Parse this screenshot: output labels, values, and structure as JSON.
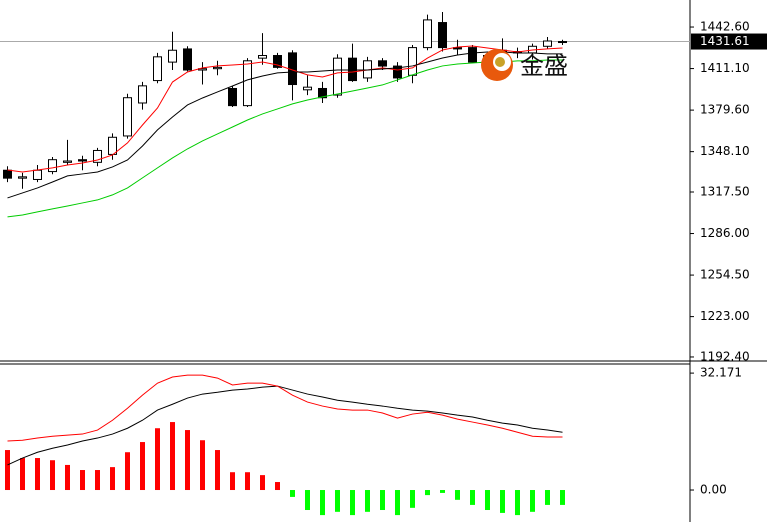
{
  "chart_data": [
    {
      "type": "candlestick",
      "categories": [
        null,
        null,
        null,
        null,
        null,
        null,
        null,
        null,
        null,
        null,
        null,
        null,
        null,
        null,
        null,
        null,
        null,
        null,
        null,
        null,
        null,
        null,
        null,
        null,
        null,
        null,
        null,
        null,
        null,
        null,
        null,
        null,
        null,
        null,
        null,
        null,
        null,
        null
      ],
      "open": [
        1334,
        1328,
        1327,
        1333,
        1340,
        1342,
        1340,
        1346,
        1360,
        1385,
        1402,
        1416,
        1426,
        1410,
        1411,
        1396,
        1383,
        1419,
        1421,
        1423,
        1395,
        1396,
        1391,
        1419,
        1404,
        1417,
        1413,
        1406,
        1427,
        1446,
        1427,
        1427,
        1420,
        1425,
        1424,
        1423,
        1428,
        1431
      ],
      "high": [
        1337,
        1332,
        1338,
        1344,
        1357,
        1345,
        1351,
        1362,
        1392,
        1401,
        1423,
        1439,
        1428,
        1416,
        1417,
        1398,
        1419,
        1438,
        1423,
        1425,
        1406,
        1401,
        1422,
        1430,
        1420,
        1419,
        1416,
        1429,
        1452,
        1454,
        1433,
        1429,
        1424,
        1434,
        1427,
        1430,
        1435,
        1433
      ],
      "low": [
        1325,
        1320,
        1325,
        1331,
        1338,
        1334,
        1337,
        1342,
        1358,
        1380,
        1400,
        1410,
        1409,
        1399,
        1406,
        1382,
        1382,
        1414,
        1411,
        1387,
        1391,
        1385,
        1389,
        1401,
        1401,
        1410,
        1401,
        1400,
        1425,
        1424,
        1421,
        1416,
        1414,
        1419,
        1419,
        1418,
        1426,
        1429
      ],
      "close": [
        1328,
        1329,
        1334,
        1342,
        1341,
        1341,
        1349,
        1359,
        1389,
        1398,
        1420,
        1425,
        1410,
        1411,
        1412,
        1383,
        1417,
        1421,
        1412,
        1399,
        1397,
        1389,
        1419,
        1402,
        1417,
        1413,
        1404,
        1427,
        1448,
        1427,
        1426,
        1416,
        1421,
        1424,
        1423,
        1428,
        1432,
        1431.61
      ],
      "up_color": "#ffffff",
      "down_color": "#000000",
      "series": [
        {
          "color": "#ff0000",
          "values": [
            1334.2,
            1332.7,
            1334.2,
            1335.8,
            1338.0,
            1339.5,
            1341.8,
            1345.6,
            1354.7,
            1368.3,
            1381.2,
            1400.9,
            1408.5,
            1411.6,
            1413.1,
            1413.8,
            1414.6,
            1416.1,
            1413.8,
            1410.0,
            1406.3,
            1404.7,
            1407.8,
            1408.5,
            1410.0,
            1411.6,
            1410.0,
            1411.6,
            1419.1,
            1425.2,
            1427.5,
            1428.2,
            1426.7,
            1425.2,
            1423.7,
            1425.2,
            1426.0,
            1426.7
          ]
        },
        {
          "color": "#000000",
          "values": [
            1313.0,
            1316.8,
            1320.6,
            1325.1,
            1329.7,
            1331.2,
            1332.7,
            1336.5,
            1341.8,
            1352.4,
            1364.6,
            1374.4,
            1383.5,
            1388.8,
            1393.4,
            1397.9,
            1402.5,
            1405.5,
            1407.8,
            1408.5,
            1408.5,
            1409.3,
            1410.0,
            1410.0,
            1410.0,
            1410.8,
            1411.6,
            1413.1,
            1416.1,
            1419.1,
            1421.4,
            1422.9,
            1423.7,
            1423.7,
            1422.9,
            1422.9,
            1422.2,
            1422.2
          ]
        },
        {
          "color": "#00cc00",
          "values": [
            1298.6,
            1300.1,
            1302.4,
            1304.7,
            1306.9,
            1309.2,
            1311.5,
            1315.3,
            1320.6,
            1328.2,
            1335.8,
            1343.3,
            1350.2,
            1356.2,
            1361.5,
            1366.8,
            1372.1,
            1376.7,
            1380.5,
            1384.3,
            1387.3,
            1389.6,
            1391.8,
            1394.1,
            1396.4,
            1398.7,
            1402.5,
            1406.3,
            1410.0,
            1413.1,
            1414.6,
            1415.3,
            1416.1,
            1416.1,
            1416.9,
            1416.9,
            1417.6,
            1417.6
          ]
        }
      ],
      "ylim": [
        1190.1,
        1463.1
      ],
      "yticks": [
        {
          "value": 1442.6,
          "label": "1442.60"
        },
        {
          "value": 1411.1,
          "label": "1411.10"
        },
        {
          "value": 1379.6,
          "label": "1379.60"
        },
        {
          "value": 1348.1,
          "label": "1348.10"
        },
        {
          "value": 1317.5,
          "label": "1317.50"
        },
        {
          "value": 1286.0,
          "label": "1286.00"
        },
        {
          "value": 1254.5,
          "label": "1254.50"
        },
        {
          "value": 1223.0,
          "label": "1223.00"
        },
        {
          "value": 1192.4,
          "label": "1192.40"
        }
      ],
      "last_price": 1431.61,
      "watermark": "金盛"
    },
    {
      "type": "macd",
      "categories": [
        null,
        null,
        null,
        null,
        null,
        null,
        null,
        null,
        null,
        null,
        null,
        null,
        null,
        null,
        null,
        null,
        null,
        null,
        null,
        null,
        null,
        null,
        null,
        null,
        null,
        null,
        null,
        null,
        null,
        null,
        null,
        null,
        null,
        null,
        null,
        null,
        null,
        null
      ],
      "values": [
        11.0,
        8.8,
        8.8,
        8.2,
        6.9,
        5.5,
        5.5,
        6.3,
        10.4,
        13.2,
        17.0,
        18.7,
        16.5,
        13.7,
        11.0,
        4.9,
        4.9,
        4.1,
        2.2,
        -1.9,
        -5.5,
        -6.9,
        -6.0,
        -6.9,
        -6.0,
        -5.5,
        -6.9,
        -4.9,
        -1.4,
        -0.8,
        -2.7,
        -4.1,
        -5.5,
        -6.3,
        -6.9,
        -6.0,
        -4.1,
        -4.1
      ],
      "up_color": "#ff0000",
      "down_color": "#00ff00",
      "series": [
        {
          "color": "#000000",
          "values": [
            6.9,
            8.8,
            10.4,
            11.5,
            12.4,
            13.5,
            14.3,
            15.4,
            17.0,
            19.2,
            22.0,
            23.6,
            25.3,
            26.4,
            26.9,
            27.5,
            27.8,
            28.3,
            28.6,
            27.5,
            26.4,
            25.6,
            24.7,
            24.2,
            23.6,
            23.1,
            22.5,
            22.0,
            21.7,
            21.2,
            20.6,
            20.1,
            19.2,
            18.4,
            17.9,
            17.0,
            16.5,
            15.9
          ]
        },
        {
          "color": "#ff0000",
          "values": [
            13.5,
            13.7,
            14.3,
            14.8,
            15.1,
            15.4,
            16.5,
            19.2,
            22.5,
            26.1,
            29.4,
            31.1,
            31.6,
            31.6,
            30.8,
            28.9,
            29.4,
            29.4,
            28.6,
            26.1,
            24.2,
            23.1,
            22.3,
            22.0,
            22.0,
            21.2,
            19.8,
            20.9,
            21.4,
            20.6,
            19.5,
            18.7,
            17.9,
            17.0,
            15.9,
            14.8,
            14.6,
            14.6
          ]
        }
      ],
      "ylim": [
        -8.8,
        34.4
      ],
      "yticks": [
        32.171,
        {
          "value": 0,
          "label": "0.00"
        }
      ]
    }
  ]
}
